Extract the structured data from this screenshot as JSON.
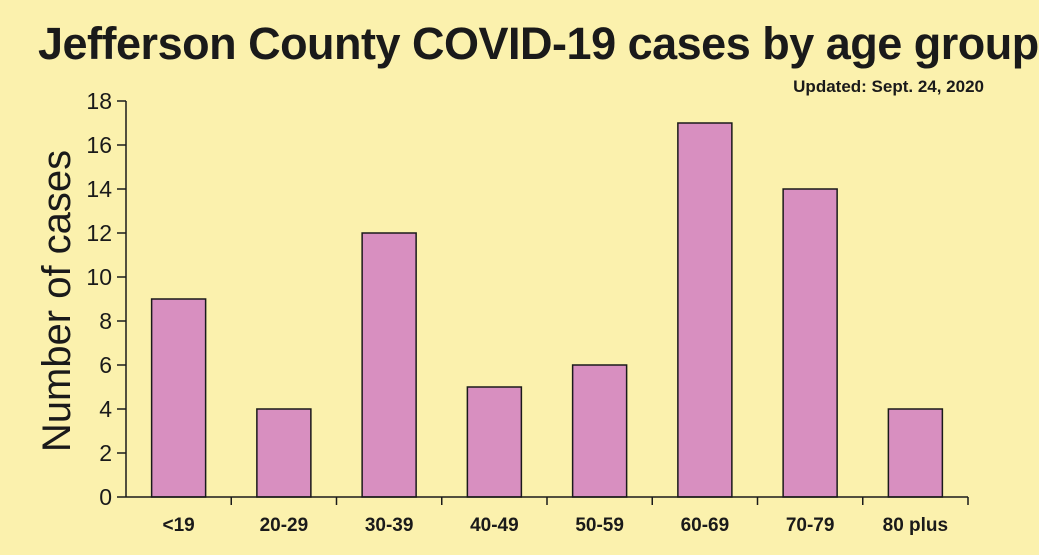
{
  "header": {
    "title": "Jefferson County COVID-19 cases by age group",
    "updated": "Updated: Sept. 24, 2020"
  },
  "colors": {
    "background": "#fbf1ad",
    "bar_fill": "#d88fc0",
    "bar_stroke": "#1a1a1a",
    "text": "#1a1a1a"
  },
  "chart_data": {
    "type": "bar",
    "title": "Jefferson County COVID-19 cases by age group",
    "subtitle": "Updated: Sept. 24, 2020",
    "xlabel": "",
    "ylabel": "Number of cases",
    "categories": [
      "<19",
      "20-29",
      "30-39",
      "40-49",
      "50-59",
      "60-69",
      "70-79",
      "80 plus"
    ],
    "values": [
      9,
      4,
      12,
      5,
      6,
      17,
      14,
      4
    ],
    "ylim": [
      0,
      18
    ],
    "yticks": [
      0,
      2,
      4,
      6,
      8,
      10,
      12,
      14,
      16,
      18
    ],
    "grid": false,
    "legend": "none"
  }
}
